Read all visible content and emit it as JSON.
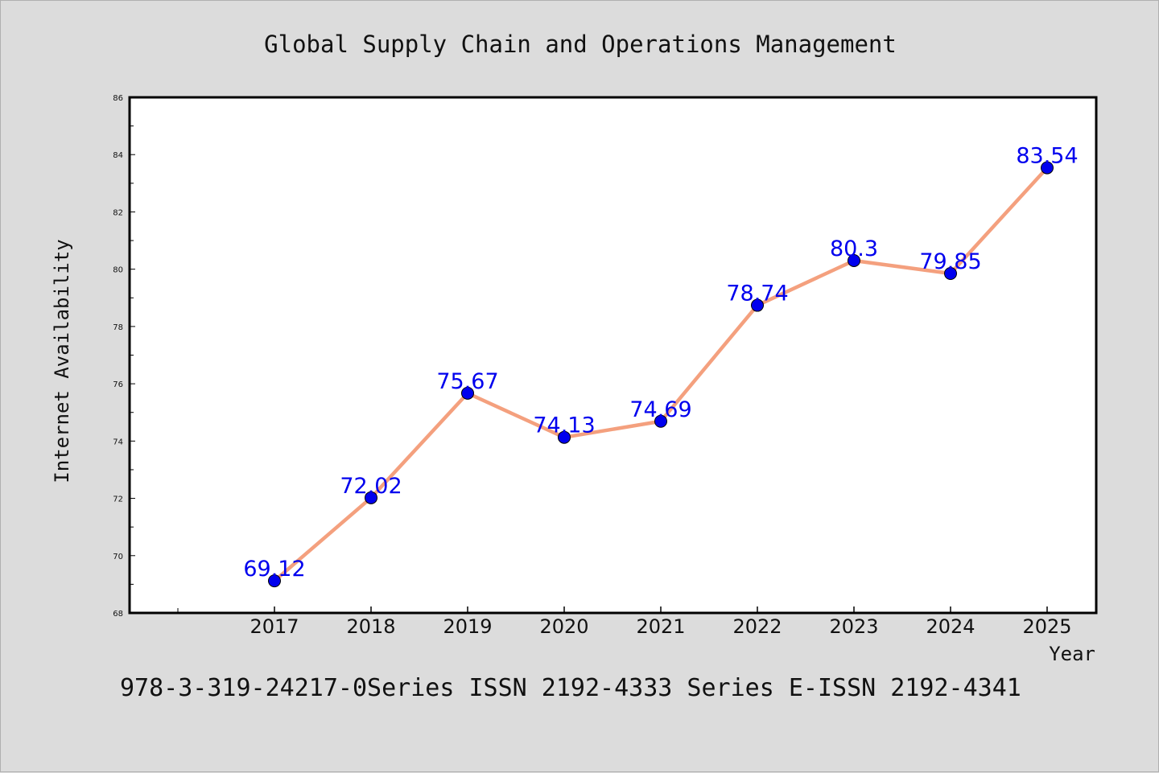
{
  "chart_data": {
    "type": "line",
    "title": "Global Supply Chain and Operations Management",
    "xlabel": "Year",
    "ylabel": "Internet Availability",
    "categories": [
      "2017",
      "2018",
      "2019",
      "2020",
      "2021",
      "2022",
      "2023",
      "2024",
      "2025"
    ],
    "series": [
      {
        "values": [
          69.12,
          72.02,
          75.67,
          74.13,
          74.69,
          78.74,
          80.3,
          79.85,
          83.54
        ],
        "labels": [
          "69.12",
          "72.02",
          "75.67",
          "74.13",
          "74.69",
          "78.74",
          "80.3",
          "79.85",
          "83.54"
        ]
      }
    ],
    "ylim": [
      68,
      86
    ],
    "yticks": [
      "68",
      "70",
      "72",
      "74",
      "76",
      "78",
      "80",
      "82",
      "84",
      "86"
    ],
    "grid": false,
    "line_color": "#f4a07e",
    "marker_color": "#0000ee",
    "label_color": "#0000ee"
  },
  "footer": "978-3-319-24217-0Series ISSN 2192-4333 Series E-ISSN 2192-4341"
}
